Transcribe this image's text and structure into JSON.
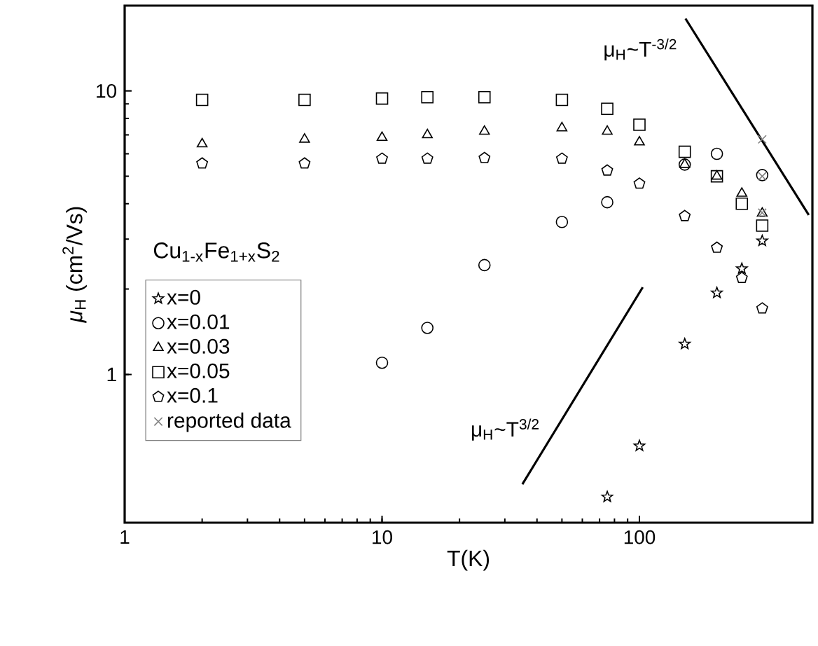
{
  "chart_data": {
    "type": "scatter",
    "xlabel": "T(K)",
    "ylabel": "*μ*$_{H}$ (cm$^{2}$/Vs)",
    "legend_title": "Cu$_{1-x}$Fe$_{1+x}$S$_{2}$",
    "log": "xy",
    "xlim": [
      1,
      470
    ],
    "ylim": [
      0.3,
      20
    ],
    "xticks": [
      1,
      10,
      100
    ],
    "yticks": [
      1,
      10
    ],
    "grid": false,
    "legend": "left",
    "series": [
      {
        "name": "x=0",
        "marker": "star",
        "color": "#000000",
        "x": [
          75,
          100,
          150,
          200,
          250,
          300
        ],
        "values": [
          0.37,
          0.56,
          1.28,
          1.94,
          2.36,
          2.96
        ]
      },
      {
        "name": "x=0.01",
        "marker": "circle",
        "color": "#000000",
        "x": [
          10,
          15,
          25,
          50,
          75,
          150,
          200,
          300
        ],
        "values": [
          1.1,
          1.46,
          2.43,
          3.45,
          4.05,
          5.5,
          6.0,
          5.05
        ]
      },
      {
        "name": "x=0.03",
        "marker": "triangle",
        "color": "#000000",
        "x": [
          2,
          5,
          10,
          15,
          25,
          50,
          75,
          100,
          150,
          200,
          250,
          300
        ],
        "values": [
          6.5,
          6.75,
          6.85,
          7.0,
          7.2,
          7.4,
          7.2,
          6.6,
          5.5,
          5.0,
          4.35,
          3.7
        ]
      },
      {
        "name": "x=0.05",
        "marker": "square",
        "color": "#000000",
        "x": [
          2,
          5,
          10,
          15,
          25,
          50,
          75,
          100,
          150,
          200,
          250,
          300
        ],
        "values": [
          9.3,
          9.3,
          9.4,
          9.5,
          9.5,
          9.3,
          8.65,
          7.6,
          6.1,
          5.0,
          4.0,
          3.35
        ]
      },
      {
        "name": "x=0.1",
        "color": "#000000",
        "x": [
          2,
          5,
          10,
          15,
          25,
          50,
          75,
          100,
          150,
          200,
          250,
          300
        ],
        "values": [
          5.55,
          5.55,
          5.77,
          5.77,
          5.8,
          5.77,
          5.24,
          4.71,
          3.62,
          2.8,
          2.19,
          1.71
        ]
      },
      {
        "name": "reported data",
        "marker": "cross",
        "color": "#808080",
        "x": [
          300,
          300,
          300
        ],
        "values": [
          6.75,
          5.0,
          3.72
        ]
      },
      {
        "type": "line",
        "marker": "none",
        "color": "#000000",
        "x": [
          151,
          455
        ],
        "values": [
          18.0,
          3.65
        ]
      },
      {
        "type": "line",
        "marker": "none",
        "color": "#000000",
        "x": [
          35.1,
          103
        ],
        "values": [
          0.41,
          2.03
        ]
      }
    ],
    "annotations": [
      "μ$_{H}$~T$^{-3/2}$",
      "μ$_{H}$~T$^{3/2}$"
    ]
  }
}
